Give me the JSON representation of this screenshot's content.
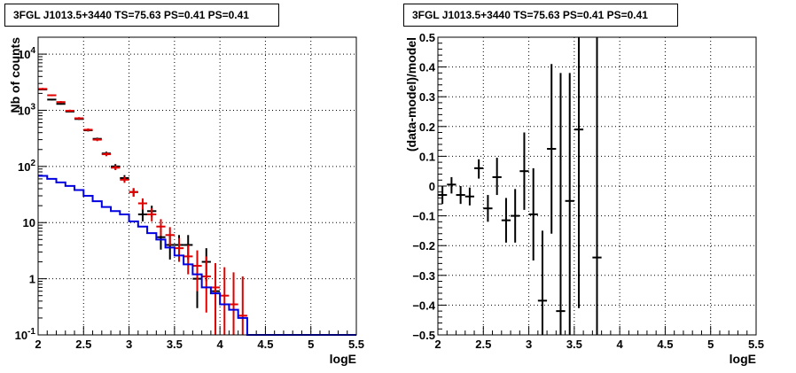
{
  "chart_data": [
    {
      "type": "scatter",
      "title": "3FGL J1013.5+3440 TS=75.63 PS=0.41 PS=0.41",
      "xlabel": "logE",
      "ylabel": "Nb of counts",
      "xlim": [
        2,
        5.5
      ],
      "ylim": [
        0.1,
        20000
      ],
      "yscale": "log",
      "grid": true,
      "x_ticks": [
        "2",
        "2.5",
        "3",
        "3.5",
        "4",
        "4.5",
        "5",
        "5.5"
      ],
      "y_ticks": [
        {
          "value": 0.1,
          "label": "10⁻¹",
          "base": "10",
          "exp": "-1"
        },
        {
          "value": 1,
          "label": "1"
        },
        {
          "value": 10,
          "label": "10"
        },
        {
          "value": 100,
          "label": "10²",
          "base": "10",
          "exp": "2"
        },
        {
          "value": 1000,
          "label": "10³",
          "base": "10",
          "exp": "3"
        },
        {
          "value": 10000,
          "label": "10⁴",
          "base": "10",
          "exp": "4"
        }
      ],
      "series": [
        {
          "color": "#000000",
          "kind": "points",
          "x": [
            2.05,
            2.15,
            2.25,
            2.35,
            2.45,
            2.55,
            2.65,
            2.75,
            2.85,
            2.95,
            3.05,
            3.15,
            3.25,
            3.35,
            3.45,
            3.55,
            3.65,
            3.75,
            3.85,
            3.95
          ],
          "y": [
            2350,
            1550,
            1300,
            950,
            700,
            440,
            310,
            170,
            100,
            62,
            35,
            14,
            16,
            5.5,
            4,
            4,
            4,
            1,
            2,
            0.6
          ],
          "ylo": [
            2300,
            1500,
            1260,
            920,
            675,
            420,
            295,
            157,
            90,
            54,
            29,
            10.5,
            12.5,
            3.3,
            2.2,
            2.2,
            2.2,
            0.3,
            0.9,
            0.1
          ],
          "yhi": [
            2400,
            1600,
            1340,
            980,
            725,
            460,
            325,
            183,
            110,
            70,
            41,
            18,
            20,
            8,
            6,
            6,
            6,
            2,
            3.5,
            1.5
          ]
        },
        {
          "color": "#e00000",
          "kind": "points",
          "x": [
            2.05,
            2.15,
            2.25,
            2.35,
            2.45,
            2.55,
            2.65,
            2.75,
            2.85,
            2.95,
            3.05,
            3.15,
            3.25,
            3.35,
            3.45,
            3.55,
            3.65,
            3.75,
            3.85,
            3.95,
            4.05,
            4.15,
            4.25
          ],
          "y": [
            2400,
            1850,
            1400,
            980,
            720,
            450,
            300,
            165,
            95,
            58,
            35,
            22,
            14,
            8.5,
            6,
            3.5,
            2.5,
            1.7,
            1.1,
            0.7,
            0.5,
            0.35,
            0.22
          ],
          "ylo": [
            2300,
            1780,
            1340,
            935,
            685,
            425,
            282,
            152,
            86,
            51,
            29,
            17,
            10.5,
            5.8,
            3.9,
            2,
            1.2,
            0.6,
            0.25,
            0.1,
            0.1,
            0.1,
            0.1
          ],
          "yhi": [
            2500,
            1920,
            1460,
            1025,
            755,
            475,
            318,
            178,
            104,
            66,
            41,
            27,
            18,
            11.5,
            8.3,
            5.3,
            4,
            3.2,
            2.5,
            1.9,
            1.6,
            1.3,
            1.1
          ]
        },
        {
          "color": "#0000e0",
          "kind": "step",
          "edges": [
            2.0,
            2.1,
            2.2,
            2.3,
            2.4,
            2.5,
            2.6,
            2.7,
            2.8,
            2.9,
            3.0,
            3.1,
            3.2,
            3.3,
            3.4,
            3.5,
            3.6,
            3.7,
            3.8,
            3.9,
            4.0,
            4.1,
            4.2,
            4.3,
            5.5
          ],
          "values": [
            68,
            60,
            52,
            45,
            38,
            30,
            24,
            19,
            16,
            14,
            10.5,
            8.5,
            6.5,
            5,
            3.6,
            2.6,
            1.8,
            1.2,
            0.7,
            0.55,
            0.35,
            0.28,
            0.2,
            0.1
          ]
        }
      ]
    },
    {
      "type": "scatter",
      "title": "3FGL J1013.5+3440 TS=75.63 PS=0.41 PS=0.41",
      "xlabel": "logE",
      "ylabel": "(data-model)/model",
      "xlim": [
        2,
        5.5
      ],
      "ylim": [
        -0.5,
        0.5
      ],
      "grid": true,
      "x_ticks": [
        "2",
        "2.5",
        "3",
        "3.5",
        "4",
        "4.5",
        "5",
        "5.5"
      ],
      "y_ticks": [
        "−0.5",
        "−0.4",
        "−0.3",
        "−0.2",
        "−0.1",
        "0",
        "0.1",
        "0.2",
        "0.3",
        "0.4",
        "0.5"
      ],
      "series": [
        {
          "color": "#000000",
          "kind": "points",
          "x": [
            2.05,
            2.15,
            2.25,
            2.35,
            2.45,
            2.55,
            2.65,
            2.75,
            2.85,
            2.95,
            3.05,
            3.15,
            3.25,
            3.35,
            3.45,
            3.55,
            3.75
          ],
          "y": [
            -0.03,
            0.005,
            -0.03,
            -0.035,
            0.06,
            -0.075,
            0.03,
            -0.115,
            -0.1,
            0.05,
            -0.095,
            -0.385,
            0.125,
            -0.42,
            -0.05,
            0.19,
            -0.24
          ],
          "ylo": [
            -0.06,
            -0.025,
            -0.06,
            -0.065,
            0.025,
            -0.12,
            -0.03,
            -0.19,
            -0.19,
            -0.08,
            -0.25,
            -0.5,
            -0.16,
            -0.5,
            -0.5,
            -0.41,
            -0.5
          ],
          "yhi": [
            0.0,
            0.03,
            0.0,
            -0.005,
            0.09,
            -0.03,
            0.095,
            -0.04,
            -0.01,
            0.18,
            0.06,
            -0.15,
            0.41,
            0.38,
            0.38,
            0.5,
            0.5
          ]
        }
      ]
    }
  ]
}
